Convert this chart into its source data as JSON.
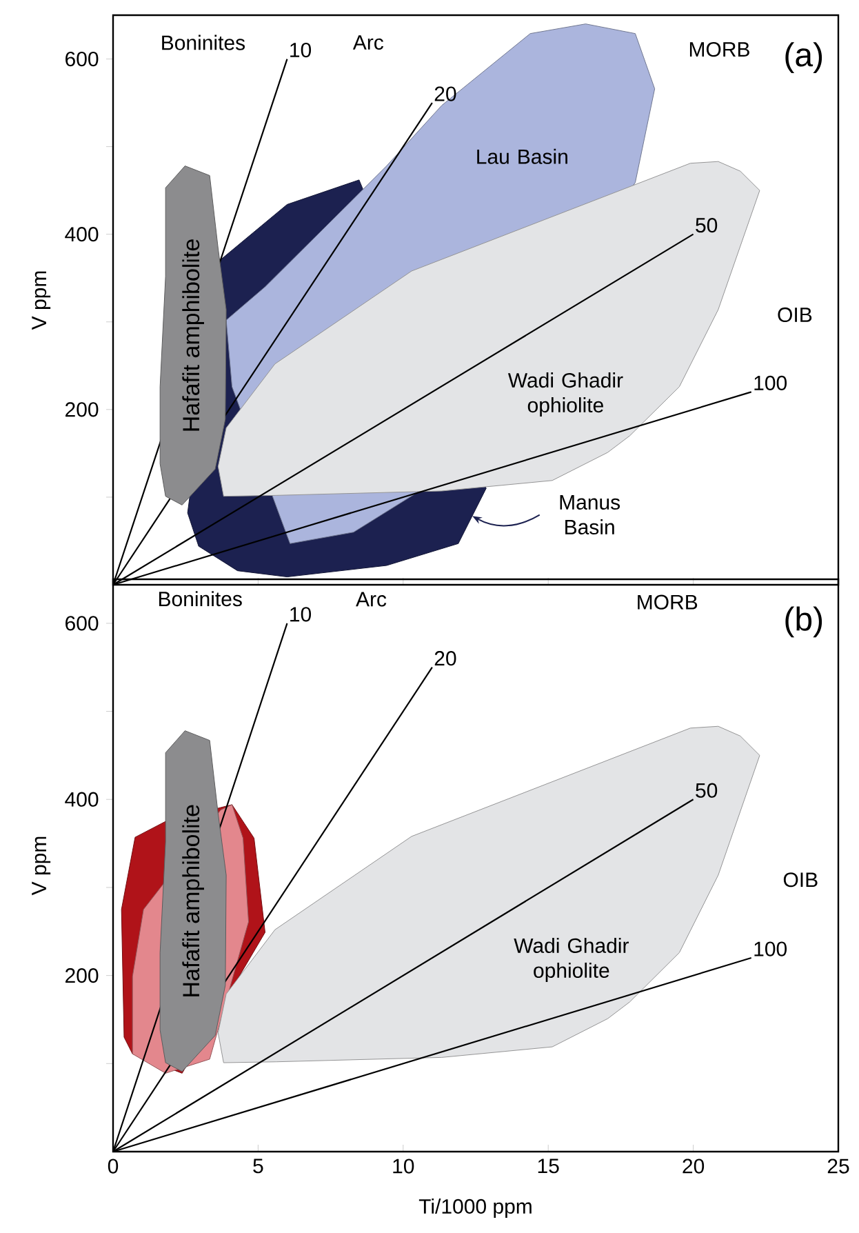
{
  "chart_data": [
    {
      "type": "area",
      "title": "(a)",
      "ylabel": "V ppm",
      "xlim": [
        0,
        25
      ],
      "ylim": [
        0,
        650
      ],
      "xticks": [
        0,
        5,
        10,
        15,
        20,
        25
      ],
      "yticks": [
        {
          "value": 100,
          "label": null
        },
        200,
        {
          "value": 300,
          "label": null
        },
        400,
        {
          "value": 500,
          "label": null
        },
        600
      ],
      "tick_labels": "y",
      "series": [
        {
          "name": "Manus Basin",
          "color": "#1c2150",
          "x": [
            3.71,
            6.0,
            8.48,
            12.86,
            11.9,
            9.43,
            6.0,
            4.29,
            2.95,
            2.57
          ],
          "values": [
            371,
            434,
            462,
            110,
            47,
            22,
            9,
            16,
            44,
            82
          ]
        },
        {
          "color": "#abb5dd",
          "x": [
            6.1,
            8.29,
            10.57,
            18.0,
            18.67,
            18.0,
            16.29,
            14.38,
            11.33,
            9.43,
            7.52,
            5.24,
            3.9,
            4.1
          ],
          "values": [
            47,
            60,
            107,
            459,
            566,
            629,
            640,
            629,
            547,
            478,
            415,
            340,
            302,
            226
          ]
        },
        {
          "color": "#e3e4e6",
          "x": [
            3.81,
            3.62,
            3.9,
            5.58,
            10.29,
            19.9,
            20.86,
            21.62,
            22.29,
            20.86,
            19.52,
            17.81,
            17.05,
            15.14,
            11.33,
            5.62
          ],
          "values": [
            101,
            135,
            179,
            252,
            358,
            481,
            483,
            472,
            450,
            314,
            226,
            170,
            151,
            119,
            107,
            102
          ]
        },
        {
          "name": "10",
          "type": "line",
          "color": "#000000",
          "x": [
            0,
            6
          ],
          "values": [
            0,
            600
          ]
        },
        {
          "name": "20",
          "type": "line",
          "color": "#000000",
          "x": [
            0,
            11
          ],
          "values": [
            0,
            550
          ]
        },
        {
          "name": "50",
          "type": "line",
          "color": "#000000",
          "x": [
            0,
            20
          ],
          "values": [
            0,
            400
          ]
        },
        {
          "name": "100",
          "type": "line",
          "color": "#000000",
          "x": [
            0,
            22
          ],
          "values": [
            0,
            220
          ]
        },
        {
          "name": "Hafafit amphibolite",
          "color": "#8c8c8e",
          "x": [
            1.81,
            2.48,
            3.33,
            3.62,
            3.9,
            3.87,
            3.52,
            2.38,
            1.81,
            1.62,
            1.62,
            1.81
          ],
          "values": [
            453,
            478,
            467,
            384,
            314,
            189,
            132,
            91,
            101,
            138,
            226,
            352
          ]
        }
      ],
      "annotations": [
        "Boninites",
        "Arc",
        "MORB",
        "OIB",
        "Lau Basin",
        "Wadi Ghadir ophiolite"
      ]
    },
    {
      "type": "area",
      "title": "(b)",
      "xlabel": "Ti/1000 ppm",
      "ylabel": "V ppm",
      "xlim": [
        0,
        25
      ],
      "ylim": [
        0,
        650
      ],
      "xticks": [
        0,
        5,
        10,
        15,
        20,
        25
      ],
      "yticks": [
        {
          "value": 100,
          "label": null
        },
        200,
        {
          "value": 300,
          "label": null
        },
        400,
        {
          "value": 500,
          "label": null
        },
        600
      ],
      "series": [
        {
          "color": "#b01319",
          "x": [
            0.38,
            0.29,
            0.76,
            1.81,
            4.1,
            4.86,
            5.24,
            2.38,
            0.67
          ],
          "values": [
            130,
            275,
            357,
            375,
            394,
            356,
            249,
            89,
            111
          ]
        },
        {
          "color": "#e3878d",
          "x": [
            0.67,
            1.81,
            3.33,
            4.67,
            4.48,
            4.1,
            3.71,
            1.05,
            0.67
          ],
          "values": [
            111,
            89,
            105,
            261,
            356,
            394,
            388,
            275,
            199
          ]
        },
        {
          "color": "#e3e4e6",
          "x": [
            3.81,
            3.62,
            3.9,
            5.58,
            10.29,
            19.9,
            20.86,
            21.62,
            22.29,
            20.86,
            19.52,
            17.81,
            17.05,
            15.14,
            11.33,
            5.62
          ],
          "values": [
            101,
            135,
            179,
            252,
            358,
            481,
            483,
            472,
            450,
            314,
            226,
            170,
            151,
            119,
            107,
            102
          ]
        },
        {
          "name": "10",
          "type": "line",
          "color": "#000000",
          "x": [
            0,
            6
          ],
          "values": [
            0,
            600
          ]
        },
        {
          "name": "20",
          "type": "line",
          "color": "#000000",
          "x": [
            0,
            11
          ],
          "values": [
            0,
            550
          ]
        },
        {
          "name": "50",
          "type": "line",
          "color": "#000000",
          "x": [
            0,
            20
          ],
          "values": [
            0,
            400
          ]
        },
        {
          "name": "100",
          "type": "line",
          "color": "#000000",
          "x": [
            0,
            22
          ],
          "values": [
            0,
            220
          ]
        },
        {
          "name": "Hafafit amphibolite",
          "color": "#8c8c8e",
          "x": [
            1.81,
            2.48,
            3.33,
            3.62,
            3.9,
            3.87,
            3.52,
            2.38,
            1.81,
            1.62,
            1.62,
            1.81
          ],
          "values": [
            453,
            478,
            467,
            384,
            314,
            189,
            132,
            91,
            101,
            138,
            226,
            352
          ]
        }
      ],
      "annotations": [
        "Boninites",
        "Arc",
        "MORB",
        "OIB",
        "Wadi Ghadir ophiolite"
      ]
    }
  ]
}
